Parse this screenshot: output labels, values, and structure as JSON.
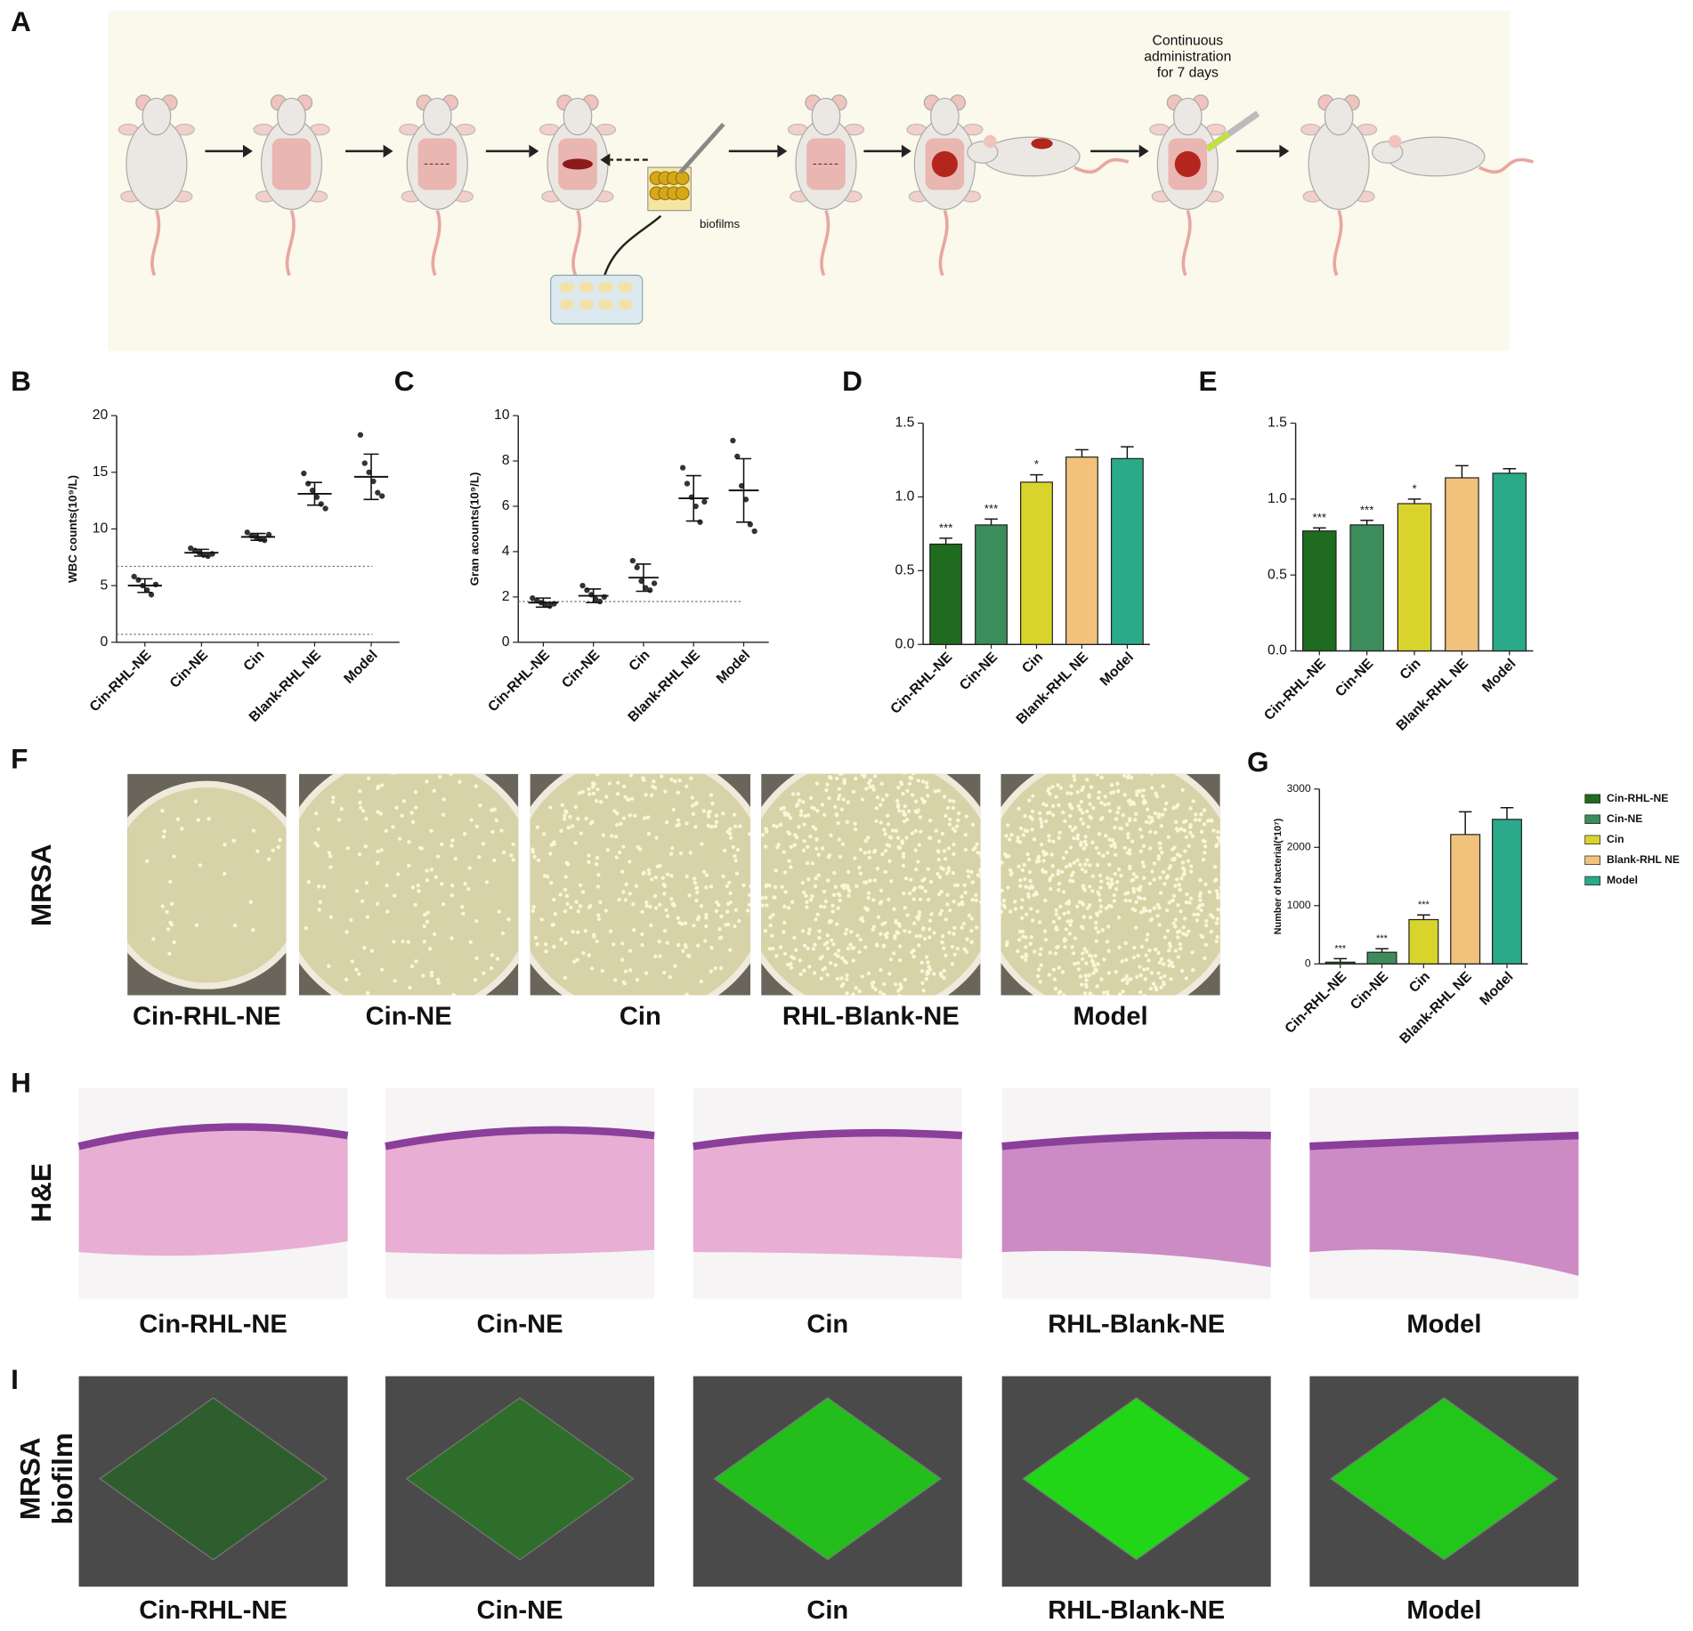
{
  "panel_labels": [
    "A",
    "B",
    "C",
    "D",
    "E",
    "F",
    "G",
    "H",
    "I"
  ],
  "schematic": {
    "note": [
      "Continuous",
      "administration",
      "for  7 days"
    ],
    "biofilm_label": "biofilms"
  },
  "chart_data": [
    {
      "type": "dot",
      "ylabel": "WBC counts(10⁹/L)",
      "categories": [
        "Cin-RHL-NE",
        "Cin-NE",
        "Cin",
        "Blank-RHL NE",
        "Model"
      ],
      "points": [
        [
          5.8,
          5.5,
          5.0,
          4.6,
          4.2,
          5.1
        ],
        [
          8.3,
          8.1,
          7.9,
          7.7,
          7.6,
          7.8
        ],
        [
          9.7,
          9.4,
          9.3,
          9.1,
          9.0,
          9.5
        ],
        [
          14.9,
          14.0,
          13.4,
          12.8,
          12.2,
          11.8
        ],
        [
          18.3,
          15.8,
          15.0,
          14.2,
          13.2,
          12.9
        ]
      ],
      "means": [
        5.0,
        7.9,
        9.3,
        13.1,
        14.6
      ],
      "sd": [
        0.6,
        0.3,
        0.3,
        1.0,
        2.0
      ],
      "hlines": [
        0.7,
        6.7
      ],
      "ylim": [
        0,
        20
      ],
      "yticks": [
        0,
        5,
        10,
        15,
        20
      ],
      "color": "#333333"
    },
    {
      "type": "dot",
      "ylabel": "Gran acounts(10⁹/L)",
      "categories": [
        "Cin-RHL-NE",
        "Cin-NE",
        "Cin",
        "Blank-RHL NE",
        "Model"
      ],
      "points": [
        [
          1.95,
          1.85,
          1.75,
          1.65,
          1.6,
          1.7
        ],
        [
          2.5,
          2.3,
          2.1,
          1.9,
          1.8,
          2.0
        ],
        [
          3.6,
          3.3,
          2.7,
          2.4,
          2.3,
          2.6
        ],
        [
          7.7,
          7.0,
          6.4,
          6.0,
          5.3,
          6.2
        ],
        [
          8.9,
          8.2,
          6.9,
          6.3,
          5.2,
          4.9
        ]
      ],
      "means": [
        1.75,
        2.05,
        2.85,
        6.35,
        6.7
      ],
      "sd": [
        0.2,
        0.3,
        0.6,
        1.0,
        1.4
      ],
      "hlines": [
        1.8
      ],
      "ylim": [
        0,
        10
      ],
      "yticks": [
        0,
        2,
        4,
        6,
        8,
        10
      ],
      "color": "#333333"
    },
    {
      "type": "bar",
      "categories": [
        "Cin-RHL-NE",
        "Cin-NE",
        "Cin",
        "Blank-RHL NE",
        "Model"
      ],
      "values": [
        0.68,
        0.81,
        1.1,
        1.27,
        1.26
      ],
      "errors": [
        0.04,
        0.04,
        0.05,
        0.05,
        0.08
      ],
      "annotations": [
        "***",
        "***",
        "*",
        null,
        null
      ],
      "colors": [
        "#1f6b1f",
        "#3c8c5c",
        "#d9d42c",
        "#f0c27c",
        "#2aaa8a"
      ],
      "ylim": [
        0,
        1.5
      ],
      "yticks": [
        {
          "value": 0,
          "label": "0.0"
        },
        0.5,
        {
          "value": 1,
          "label": "1.0"
        },
        1.5
      ]
    },
    {
      "type": "bar",
      "categories": [
        "Cin-RHL-NE",
        "Cin-NE",
        "Cin",
        "Blank-RHL NE",
        "Model"
      ],
      "values": [
        0.79,
        0.83,
        0.97,
        1.14,
        1.17
      ],
      "errors": [
        0.02,
        0.03,
        0.03,
        0.08,
        0.03
      ],
      "annotations": [
        "***",
        "***",
        "*",
        null,
        null
      ],
      "colors": [
        "#1f6b1f",
        "#3c8c5c",
        "#d9d42c",
        "#f0c27c",
        "#2aaa8a"
      ],
      "ylim": [
        0,
        1.5
      ],
      "yticks": [
        {
          "value": 0,
          "label": "0.0"
        },
        0.5,
        {
          "value": 1,
          "label": "1.0"
        },
        1.5
      ]
    },
    {
      "type": "bar",
      "ylabel": "Number of bacterial(*10⁷)",
      "categories": [
        "Cin-RHL-NE",
        "Cin-NE",
        "Cin",
        "Blank-RHL NE",
        "Model"
      ],
      "values": [
        30,
        200,
        760,
        2220,
        2480
      ],
      "errors": [
        60,
        60,
        80,
        390,
        200
      ],
      "annotations": [
        "***",
        "***",
        "***",
        null,
        null
      ],
      "colors": [
        "#1f6b1f",
        "#3c8c5c",
        "#d9d42c",
        "#f0c27c",
        "#2aaa8a"
      ],
      "ylim": [
        0,
        3000
      ],
      "yticks": [
        0,
        1000,
        2000,
        3000
      ],
      "legend": true
    }
  ],
  "plates": {
    "row_label": "MRSA",
    "captions": [
      "Cin-RHL-NE",
      "Cin-NE",
      "Cin",
      "RHL-Blank-NE",
      "Model"
    ],
    "colony_density": [
      35,
      160,
      320,
      560,
      700
    ]
  },
  "histology": {
    "row_label": "H&E",
    "captions": [
      "Cin-RHL-NE",
      "Cin-NE",
      "Cin",
      "RHL-Blank-NE",
      "Model"
    ]
  },
  "biofilm": {
    "row_label": [
      "MRSA",
      "biofilm"
    ],
    "captions": [
      "Cin-RHL-NE",
      "Cin-NE",
      "Cin",
      "RHL-Blank-NE",
      "Model"
    ],
    "green_intensity": [
      0.15,
      0.25,
      0.75,
      0.9,
      0.8
    ]
  }
}
